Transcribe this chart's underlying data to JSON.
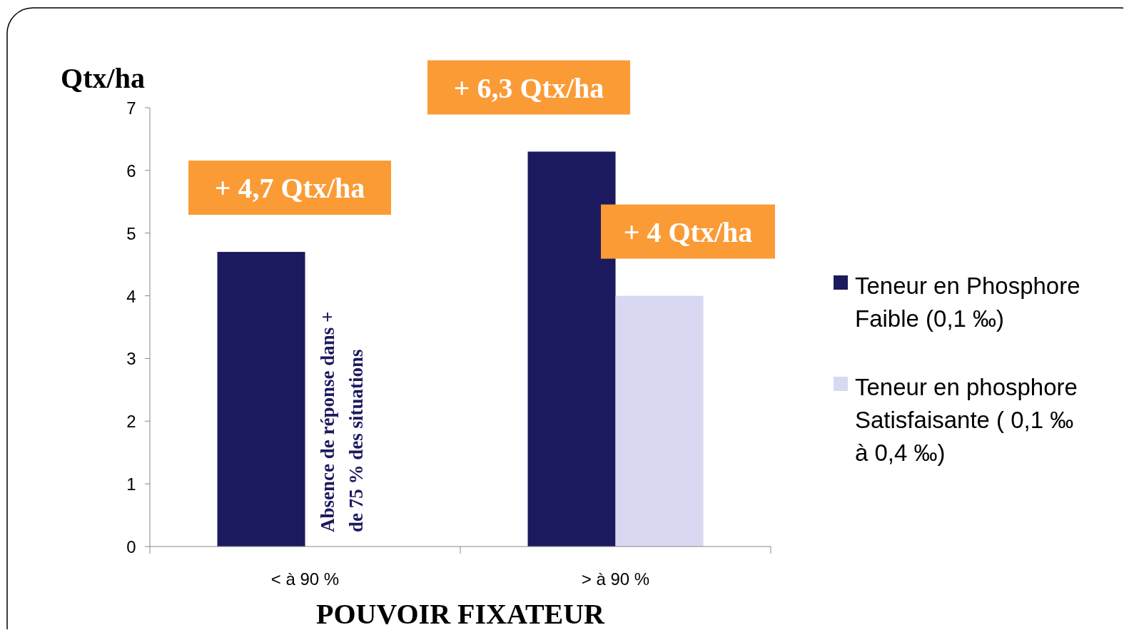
{
  "chart_data": {
    "type": "bar",
    "categories": [
      "< à 90 %",
      "> à 90 %"
    ],
    "series": [
      {
        "name": "Teneur en Phosphore Faible (0,1 ‰)",
        "color": "#1b1a5e",
        "values": [
          4.7,
          6.3
        ]
      },
      {
        "name": "Teneur en phosphore Satisfaisante ( 0,1 ‰ à 0,4 ‰)",
        "color": "#d8d8f2",
        "values": [
          null,
          4
        ]
      }
    ],
    "ylim": [
      0,
      7
    ],
    "yticks": [
      0,
      1,
      2,
      3,
      4,
      5,
      6,
      7
    ],
    "xlabel": "POUVOIR FIXATEUR",
    "ylabel": "Qtx/ha",
    "legend": "right",
    "annotations": [
      {
        "text": "+ 4,7 Qtx/ha",
        "x": "< à 90 %",
        "y": 4.7
      },
      {
        "text": "+ 6,3 Qtx/ha",
        "x": "> à 90 %",
        "y": 6.3
      },
      {
        "text": "+ 4 Qtx/ha",
        "x": "> à 90 %",
        "y": 4
      },
      {
        "text": "Absence de réponse dans + de 75 % des situations",
        "x": "< à 90 %",
        "y": 0
      }
    ]
  }
}
